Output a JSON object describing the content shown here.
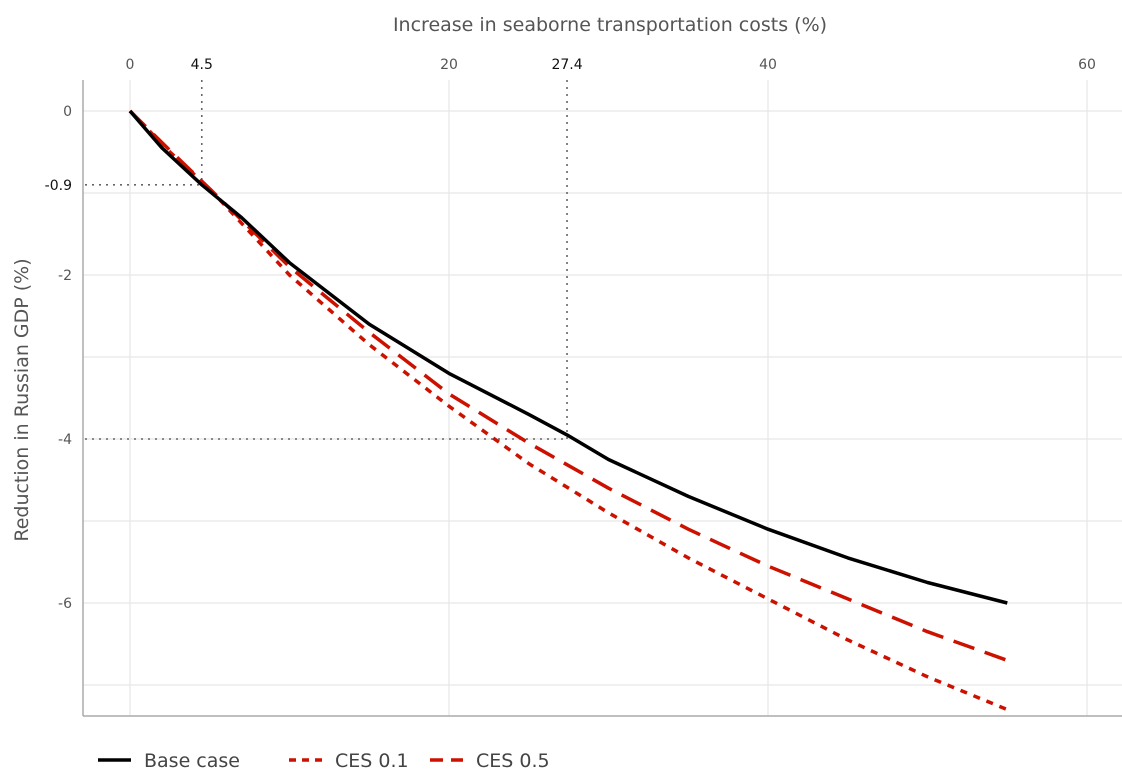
{
  "chart_data": {
    "type": "line",
    "xlabel": "Increase in seaborne transportation costs (%)",
    "ylabel": "Reduction in Russian GDP (%)",
    "xlim": [
      0,
      60
    ],
    "ylim": [
      -7.3,
      0
    ],
    "x_ticks": [
      "0",
      "4.5",
      "20",
      "27.4",
      "40",
      "60"
    ],
    "y_ticks": [
      "0",
      "-0.9",
      "-2",
      "-4",
      "-6"
    ],
    "grid": true,
    "legend_position": "bottom-left",
    "reference_lines": [
      {
        "x": 4.5,
        "y": -0.9
      },
      {
        "x": 27.4,
        "y": -4
      }
    ],
    "series": [
      {
        "name": "Base case",
        "color": "#000000",
        "style": "solid",
        "x": [
          0,
          2,
          4.5,
          7,
          10,
          15,
          20,
          25,
          27.4,
          30,
          35,
          40,
          45,
          50,
          55
        ],
        "y": [
          0,
          -0.45,
          -0.9,
          -1.3,
          -1.85,
          -2.6,
          -3.2,
          -3.7,
          -3.95,
          -4.25,
          -4.7,
          -5.1,
          -5.45,
          -5.75,
          -6.0
        ]
      },
      {
        "name": "CES 0.1",
        "color": "#cc1100",
        "style": "dotted",
        "x": [
          0,
          2.5,
          5,
          10,
          15,
          20,
          25,
          30,
          35,
          40,
          45,
          50,
          55
        ],
        "y": [
          0,
          -0.5,
          -0.95,
          -2.0,
          -2.85,
          -3.6,
          -4.3,
          -4.9,
          -5.45,
          -5.95,
          -6.45,
          -6.9,
          -7.3
        ]
      },
      {
        "name": "CES 0.5",
        "color": "#cc1100",
        "style": "dashed",
        "x": [
          0,
          2.5,
          5,
          10,
          15,
          20,
          25,
          30,
          35,
          40,
          45,
          50,
          55
        ],
        "y": [
          0,
          -0.48,
          -0.95,
          -1.9,
          -2.7,
          -3.45,
          -4.05,
          -4.6,
          -5.1,
          -5.55,
          -5.95,
          -6.35,
          -6.7
        ]
      }
    ]
  }
}
